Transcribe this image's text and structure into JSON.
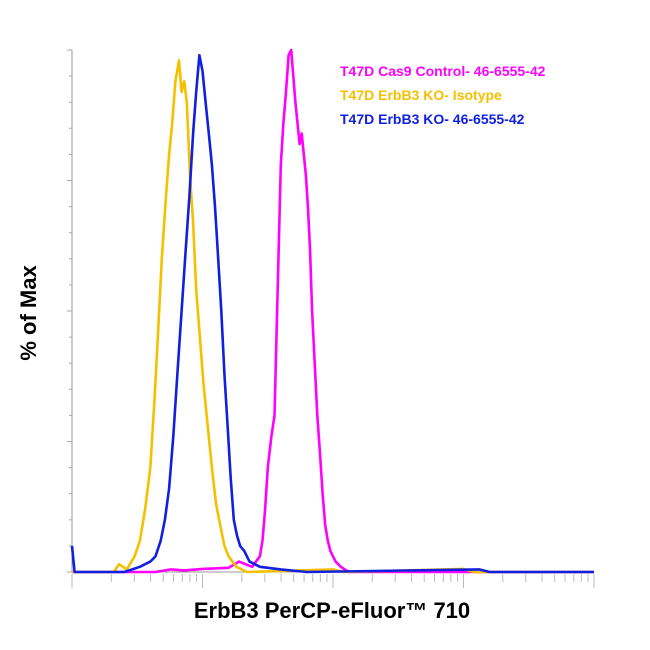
{
  "chart_data": {
    "type": "line",
    "title": "",
    "xlabel": "ErbB3 PerCP-eFluor™ 710",
    "ylabel": "% of Max",
    "xlim": [
      0,
      1
    ],
    "ylim": [
      0,
      100
    ],
    "xscale": "log",
    "grid": false,
    "legend_position": "top-right",
    "series": [
      {
        "name": "T47D Cas9 Control- 46-6555-42",
        "color": "#ff00ff",
        "points": [
          [
            0.0,
            0
          ],
          [
            0.16,
            0
          ],
          [
            0.19,
            0.5
          ],
          [
            0.215,
            0.3
          ],
          [
            0.25,
            0.6
          ],
          [
            0.3,
            0.8
          ],
          [
            0.32,
            2
          ],
          [
            0.345,
            1
          ],
          [
            0.36,
            3
          ],
          [
            0.365,
            6
          ],
          [
            0.37,
            12
          ],
          [
            0.375,
            20
          ],
          [
            0.382,
            26
          ],
          [
            0.388,
            30
          ],
          [
            0.392,
            46
          ],
          [
            0.396,
            62
          ],
          [
            0.4,
            78
          ],
          [
            0.405,
            86
          ],
          [
            0.41,
            92
          ],
          [
            0.415,
            99
          ],
          [
            0.42,
            100
          ],
          [
            0.424,
            95
          ],
          [
            0.428,
            90
          ],
          [
            0.432,
            86
          ],
          [
            0.436,
            82
          ],
          [
            0.44,
            84
          ],
          [
            0.444,
            80
          ],
          [
            0.448,
            76
          ],
          [
            0.452,
            70
          ],
          [
            0.456,
            62
          ],
          [
            0.46,
            50
          ],
          [
            0.465,
            40
          ],
          [
            0.47,
            30
          ],
          [
            0.475,
            23
          ],
          [
            0.48,
            15
          ],
          [
            0.485,
            9
          ],
          [
            0.49,
            6
          ],
          [
            0.495,
            4
          ],
          [
            0.5,
            3
          ],
          [
            0.505,
            2
          ],
          [
            0.515,
            1
          ],
          [
            0.53,
            0
          ],
          [
            1.0,
            0
          ]
        ]
      },
      {
        "name": "T47D ErbB3 KO- Isotype",
        "color": "#f5c000",
        "points": [
          [
            0.0,
            0
          ],
          [
            0.08,
            0
          ],
          [
            0.09,
            1.5
          ],
          [
            0.105,
            0.5
          ],
          [
            0.12,
            3
          ],
          [
            0.13,
            6
          ],
          [
            0.14,
            12
          ],
          [
            0.15,
            20
          ],
          [
            0.158,
            33
          ],
          [
            0.165,
            46
          ],
          [
            0.172,
            60
          ],
          [
            0.18,
            72
          ],
          [
            0.186,
            80
          ],
          [
            0.192,
            86
          ],
          [
            0.198,
            94
          ],
          [
            0.205,
            98
          ],
          [
            0.21,
            92
          ],
          [
            0.215,
            94
          ],
          [
            0.22,
            90
          ],
          [
            0.226,
            76
          ],
          [
            0.232,
            67
          ],
          [
            0.238,
            54
          ],
          [
            0.245,
            45
          ],
          [
            0.252,
            36
          ],
          [
            0.26,
            28
          ],
          [
            0.268,
            20
          ],
          [
            0.276,
            13
          ],
          [
            0.284,
            9
          ],
          [
            0.292,
            5
          ],
          [
            0.3,
            3
          ],
          [
            0.315,
            1
          ],
          [
            0.335,
            0
          ],
          [
            0.5,
            0.5
          ],
          [
            0.52,
            0
          ],
          [
            0.75,
            0.6
          ],
          [
            0.77,
            0
          ],
          [
            1.0,
            0
          ]
        ]
      },
      {
        "name": "T47D ErbB3 KO- 46-6555-42",
        "color": "#1020e0",
        "points": [
          [
            0.0,
            5
          ],
          [
            0.005,
            0
          ],
          [
            0.1,
            0
          ],
          [
            0.13,
            1
          ],
          [
            0.15,
            2
          ],
          [
            0.16,
            3
          ],
          [
            0.17,
            6
          ],
          [
            0.178,
            10
          ],
          [
            0.186,
            16
          ],
          [
            0.194,
            26
          ],
          [
            0.202,
            38
          ],
          [
            0.21,
            50
          ],
          [
            0.218,
            62
          ],
          [
            0.225,
            72
          ],
          [
            0.232,
            84
          ],
          [
            0.238,
            92
          ],
          [
            0.244,
            99
          ],
          [
            0.25,
            96
          ],
          [
            0.256,
            90
          ],
          [
            0.262,
            84
          ],
          [
            0.268,
            78
          ],
          [
            0.274,
            70
          ],
          [
            0.28,
            60
          ],
          [
            0.286,
            50
          ],
          [
            0.292,
            38
          ],
          [
            0.298,
            28
          ],
          [
            0.304,
            18
          ],
          [
            0.31,
            10
          ],
          [
            0.316,
            7
          ],
          [
            0.322,
            5
          ],
          [
            0.33,
            4
          ],
          [
            0.34,
            2
          ],
          [
            0.36,
            1
          ],
          [
            0.4,
            0.5
          ],
          [
            0.45,
            0
          ],
          [
            0.78,
            0.5
          ],
          [
            0.8,
            0
          ],
          [
            1.0,
            0
          ]
        ]
      }
    ]
  }
}
